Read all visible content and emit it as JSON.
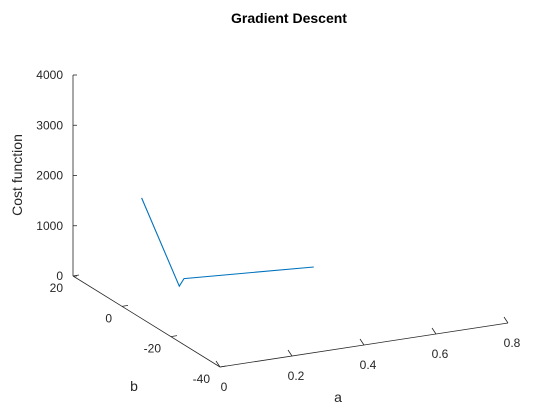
{
  "chart_data": {
    "type": "line",
    "projection": "3d",
    "title": "Gradient Descent",
    "xlabel": "a",
    "ylabel": "b",
    "zlabel": "Cost function",
    "xlim": [
      0,
      0.8
    ],
    "ylim": [
      -40,
      20
    ],
    "zlim": [
      0,
      4000
    ],
    "x_ticks": [
      "0",
      "0.2",
      "0.4",
      "0.6",
      "0.8"
    ],
    "y_ticks": [
      "-40",
      "-20",
      "0",
      "20"
    ],
    "z_ticks": [
      "0",
      "1000",
      "2000",
      "3000",
      "4000"
    ],
    "grid": false,
    "line_color": "#0072BD",
    "series": [
      {
        "x": [
          0.0,
          0.2,
          0.22,
          0.56
        ],
        "y": [
          -8,
          6,
          7,
          4
        ],
        "z": [
          2400,
          0,
          100,
          50
        ]
      }
    ]
  }
}
